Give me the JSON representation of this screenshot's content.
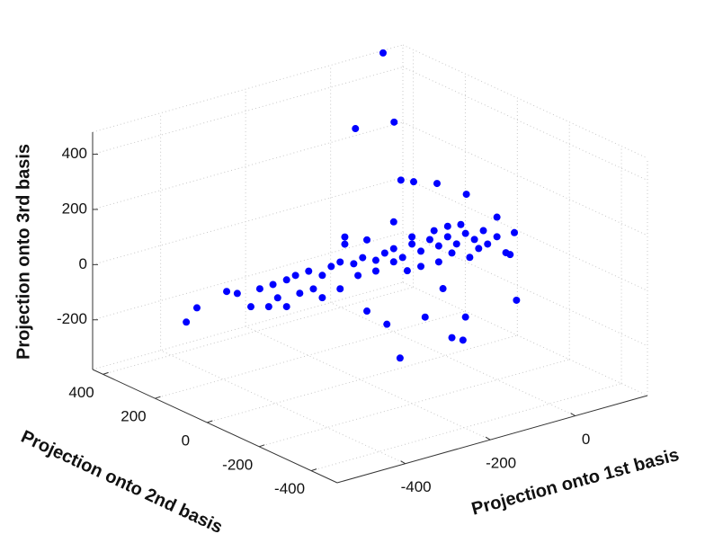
{
  "chart_data": {
    "type": "scatter3d",
    "x_label": "Projection onto 1st basis",
    "y_label": "Projection onto 2nd basis",
    "z_label": "Projection onto 3rd basis",
    "color": "#0000ff",
    "grid": true,
    "xlim": [
      -560,
      170
    ],
    "ylim": [
      -500,
      440
    ],
    "zlim": [
      -380,
      480
    ],
    "xticks": [
      -400,
      -200,
      0
    ],
    "yticks": [
      -400,
      -200,
      0,
      200,
      400
    ],
    "zticks": [
      -200,
      0,
      200,
      400
    ],
    "x": [
      -146,
      -211,
      -120,
      -609,
      -584,
      -514,
      -106,
      16,
      42,
      168,
      48,
      -47,
      -137,
      -74,
      -104,
      -19,
      50,
      163,
      -436,
      -405,
      -373,
      -352,
      -321,
      -289,
      -268,
      -247,
      -215,
      -194,
      -163,
      -142,
      -121,
      -100,
      -78,
      -57,
      -36,
      -15,
      6,
      27,
      48,
      69,
      90,
      16,
      37,
      -15,
      -57,
      -89,
      58,
      79,
      100,
      122,
      143,
      6,
      -26,
      -78,
      -121,
      -163,
      -205,
      -236,
      -184,
      -310,
      -342,
      -394,
      -415,
      -457,
      -489,
      -373,
      -247,
      -289,
      -184,
      -5,
      -121,
      122,
      153,
      -236
    ],
    "y": [
      0,
      0,
      0,
      0,
      0,
      0,
      0,
      0,
      0,
      0,
      0,
      0,
      0,
      0,
      0,
      0,
      0,
      0,
      0,
      0,
      0,
      0,
      0,
      0,
      0,
      0,
      0,
      0,
      0,
      0,
      0,
      0,
      0,
      0,
      0,
      0,
      0,
      0,
      0,
      0,
      0,
      0,
      0,
      0,
      0,
      0,
      0,
      0,
      0,
      0,
      0,
      0,
      0,
      0,
      0,
      0,
      0,
      0,
      0,
      0,
      0,
      0,
      0,
      0,
      0,
      0,
      0,
      0,
      0,
      0,
      0,
      0,
      0,
      0
    ],
    "z": [
      780,
      534,
      518,
      5,
      46,
      75,
      -343,
      -322,
      -342,
      -252,
      -261,
      -220,
      -207,
      282,
      301,
      252,
      183,
      -5,
      51,
      53,
      56,
      63,
      65,
      36,
      59,
      66,
      46,
      59,
      36,
      53,
      60,
      19,
      58,
      23,
      56,
      24,
      48,
      13,
      42,
      11,
      34,
      -15,
      79,
      -34,
      -32,
      -34,
      -49,
      -26,
      -19,
      -2,
      -69,
      86,
      84,
      84,
      12,
      -3,
      -1,
      126,
      119,
      -4,
      -6,
      0,
      -23,
      -5,
      57,
      -41,
      -31,
      -45,
      -139,
      -135,
      157,
      69,
      -80,
      152
    ]
  }
}
